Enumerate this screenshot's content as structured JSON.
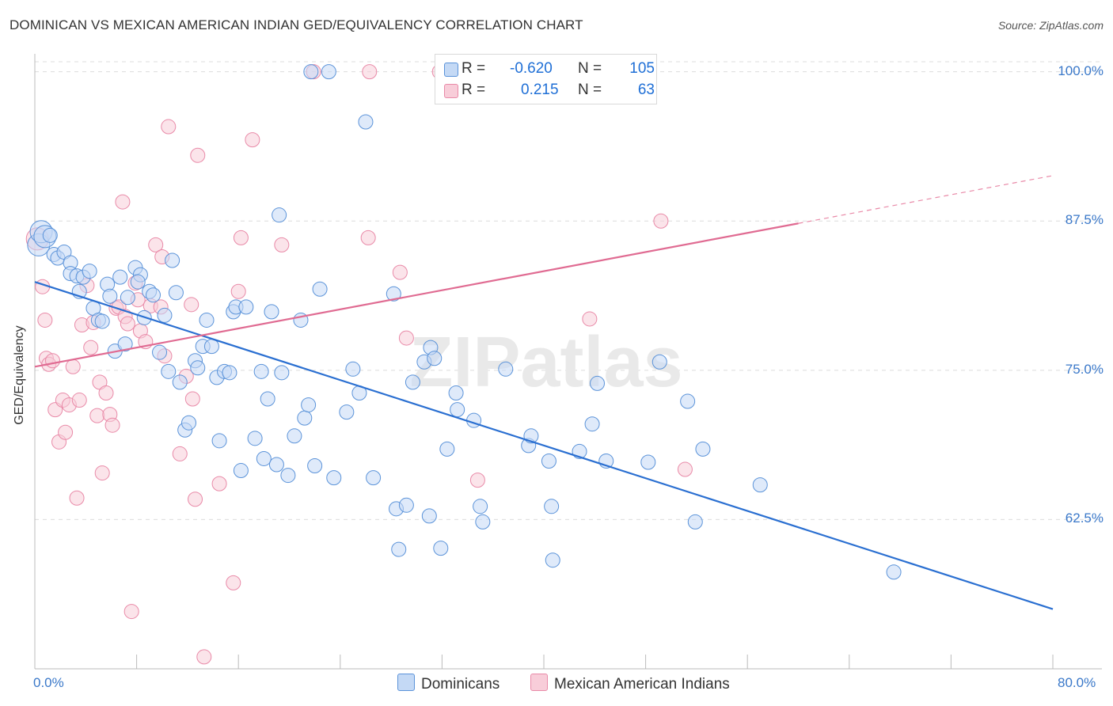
{
  "title": "DOMINICAN VS MEXICAN AMERICAN INDIAN GED/EQUIVALENCY CORRELATION CHART",
  "source": "Source: ZipAtlas.com",
  "watermark": "ZIPatlas",
  "legend": {
    "dominicans": {
      "r_label": "R =",
      "r_value": "-0.620",
      "n_label": "N =",
      "n_value": "105",
      "color": "#5b93d9"
    },
    "mexican": {
      "r_label": "R =",
      "r_value": "0.215",
      "n_label": "N =",
      "n_value": "63",
      "color": "#e98aa8"
    }
  },
  "bottom_legend": {
    "dominicans": "Dominicans",
    "mexican": "Mexican American Indians"
  },
  "chart_data": {
    "type": "scatter",
    "title": "DOMINICAN VS MEXICAN AMERICAN INDIAN GED/EQUIVALENCY CORRELATION CHART",
    "xlabel": "",
    "ylabel": "GED/Equivalency",
    "xlim": [
      0,
      80
    ],
    "ylim": [
      50,
      101.5
    ],
    "x_tick_labels": [
      "0.0%",
      "80.0%"
    ],
    "y_tick_labels": [
      "62.5%",
      "75.0%",
      "87.5%",
      "100.0%"
    ],
    "y_ticks": [
      62.5,
      75.0,
      87.5,
      100.0
    ],
    "grid": true,
    "legend_position": "top-center",
    "series": [
      {
        "name": "Dominicans",
        "color": "#5b93d9",
        "trend": {
          "x": [
            0,
            80
          ],
          "y": [
            82.4,
            55.0
          ]
        },
        "points": [
          [
            0.3,
            85.5
          ],
          [
            0.5,
            86.6
          ],
          [
            0.8,
            86.2
          ],
          [
            1.2,
            86.3
          ],
          [
            1.5,
            84.7
          ],
          [
            1.8,
            84.4
          ],
          [
            2.3,
            84.9
          ],
          [
            2.8,
            84.0
          ],
          [
            2.8,
            83.1
          ],
          [
            3.3,
            82.9
          ],
          [
            3.5,
            81.6
          ],
          [
            3.8,
            82.8
          ],
          [
            4.3,
            83.3
          ],
          [
            4.6,
            80.2
          ],
          [
            5.0,
            79.2
          ],
          [
            5.3,
            79.1
          ],
          [
            5.7,
            82.2
          ],
          [
            5.9,
            81.2
          ],
          [
            6.3,
            76.6
          ],
          [
            6.7,
            82.8
          ],
          [
            7.1,
            77.2
          ],
          [
            7.3,
            81.1
          ],
          [
            7.9,
            83.6
          ],
          [
            8.3,
            83.0
          ],
          [
            8.6,
            79.4
          ],
          [
            8.1,
            82.4
          ],
          [
            9.0,
            81.6
          ],
          [
            9.3,
            81.3
          ],
          [
            9.8,
            76.5
          ],
          [
            10.2,
            79.6
          ],
          [
            10.5,
            74.9
          ],
          [
            10.8,
            84.2
          ],
          [
            11.1,
            81.5
          ],
          [
            11.4,
            74.0
          ],
          [
            11.8,
            70.0
          ],
          [
            12.1,
            70.6
          ],
          [
            12.6,
            75.8
          ],
          [
            12.8,
            75.2
          ],
          [
            13.2,
            77.0
          ],
          [
            13.5,
            79.2
          ],
          [
            13.9,
            77.0
          ],
          [
            14.3,
            74.4
          ],
          [
            14.5,
            69.1
          ],
          [
            14.9,
            74.9
          ],
          [
            15.3,
            74.8
          ],
          [
            15.6,
            79.9
          ],
          [
            15.8,
            80.3
          ],
          [
            16.2,
            66.6
          ],
          [
            16.6,
            80.3
          ],
          [
            17.3,
            69.3
          ],
          [
            17.8,
            74.9
          ],
          [
            18.0,
            67.6
          ],
          [
            18.3,
            72.6
          ],
          [
            18.6,
            79.9
          ],
          [
            19.0,
            67.1
          ],
          [
            19.2,
            88.0
          ],
          [
            19.4,
            74.8
          ],
          [
            19.9,
            66.2
          ],
          [
            20.4,
            69.5
          ],
          [
            20.9,
            79.2
          ],
          [
            21.2,
            71.0
          ],
          [
            21.5,
            72.1
          ],
          [
            21.7,
            100.0
          ],
          [
            22.0,
            67.0
          ],
          [
            22.4,
            81.8
          ],
          [
            23.1,
            100.0
          ],
          [
            23.5,
            66.0
          ],
          [
            24.5,
            71.5
          ],
          [
            25.0,
            75.1
          ],
          [
            25.5,
            73.1
          ],
          [
            26.0,
            95.8
          ],
          [
            26.6,
            66.0
          ],
          [
            28.2,
            81.4
          ],
          [
            28.4,
            63.4
          ],
          [
            28.6,
            60.0
          ],
          [
            29.2,
            63.7
          ],
          [
            29.7,
            74.0
          ],
          [
            30.6,
            75.7
          ],
          [
            31.0,
            62.8
          ],
          [
            31.1,
            76.9
          ],
          [
            31.4,
            76.0
          ],
          [
            31.9,
            60.1
          ],
          [
            32.4,
            68.4
          ],
          [
            33.1,
            73.1
          ],
          [
            33.2,
            71.7
          ],
          [
            34.5,
            70.8
          ],
          [
            35.0,
            63.6
          ],
          [
            35.2,
            62.3
          ],
          [
            37.0,
            75.1
          ],
          [
            38.8,
            68.7
          ],
          [
            39.0,
            69.5
          ],
          [
            40.4,
            67.4
          ],
          [
            40.6,
            63.6
          ],
          [
            40.7,
            59.1
          ],
          [
            42.8,
            68.2
          ],
          [
            43.8,
            70.5
          ],
          [
            44.2,
            73.9
          ],
          [
            44.9,
            67.4
          ],
          [
            48.2,
            67.3
          ],
          [
            49.1,
            75.7
          ],
          [
            51.3,
            72.4
          ],
          [
            51.9,
            62.3
          ],
          [
            52.5,
            68.4
          ],
          [
            57.0,
            65.4
          ],
          [
            67.5,
            58.1
          ]
        ]
      },
      {
        "name": "Mexican American Indians",
        "color": "#e98aa8",
        "trend": {
          "x": [
            0,
            60
          ],
          "y": [
            75.3,
            87.3
          ]
        },
        "trend_dashed": {
          "x": [
            60,
            80
          ],
          "y": [
            87.3,
            91.3
          ]
        },
        "points": [
          [
            0.2,
            86.0
          ],
          [
            0.6,
            82.0
          ],
          [
            0.8,
            79.2
          ],
          [
            0.9,
            76.0
          ],
          [
            1.1,
            75.5
          ],
          [
            1.4,
            75.8
          ],
          [
            1.6,
            71.7
          ],
          [
            1.9,
            69.0
          ],
          [
            2.2,
            72.5
          ],
          [
            2.4,
            69.8
          ],
          [
            2.7,
            72.1
          ],
          [
            3.0,
            75.3
          ],
          [
            3.3,
            64.3
          ],
          [
            3.5,
            72.5
          ],
          [
            3.7,
            78.8
          ],
          [
            4.1,
            82.1
          ],
          [
            4.4,
            76.9
          ],
          [
            4.6,
            79.0
          ],
          [
            4.9,
            71.2
          ],
          [
            5.1,
            74.0
          ],
          [
            5.3,
            66.4
          ],
          [
            5.6,
            73.1
          ],
          [
            5.9,
            71.3
          ],
          [
            6.1,
            70.4
          ],
          [
            6.4,
            80.2
          ],
          [
            6.6,
            80.3
          ],
          [
            6.9,
            89.1
          ],
          [
            7.1,
            79.5
          ],
          [
            7.3,
            78.9
          ],
          [
            7.6,
            54.8
          ],
          [
            7.9,
            82.3
          ],
          [
            8.1,
            80.9
          ],
          [
            8.3,
            78.3
          ],
          [
            8.7,
            77.4
          ],
          [
            9.1,
            80.4
          ],
          [
            9.5,
            85.5
          ],
          [
            9.9,
            80.3
          ],
          [
            10.2,
            76.2
          ],
          [
            10.5,
            95.4
          ],
          [
            11.4,
            68.0
          ],
          [
            11.9,
            74.5
          ],
          [
            12.3,
            80.5
          ],
          [
            12.4,
            72.6
          ],
          [
            12.6,
            64.2
          ],
          [
            12.8,
            93.0
          ],
          [
            13.3,
            51.0
          ],
          [
            14.5,
            65.5
          ],
          [
            15.6,
            57.2
          ],
          [
            16.0,
            81.6
          ],
          [
            16.2,
            86.1
          ],
          [
            17.1,
            94.3
          ],
          [
            19.4,
            85.5
          ],
          [
            21.9,
            100.0
          ],
          [
            26.2,
            86.1
          ],
          [
            26.3,
            100.0
          ],
          [
            28.7,
            83.2
          ],
          [
            29.2,
            77.7
          ],
          [
            31.8,
            100.0
          ],
          [
            34.8,
            65.8
          ],
          [
            43.6,
            79.3
          ],
          [
            49.2,
            87.5
          ],
          [
            51.1,
            66.7
          ],
          [
            10.0,
            84.5
          ]
        ]
      }
    ]
  }
}
